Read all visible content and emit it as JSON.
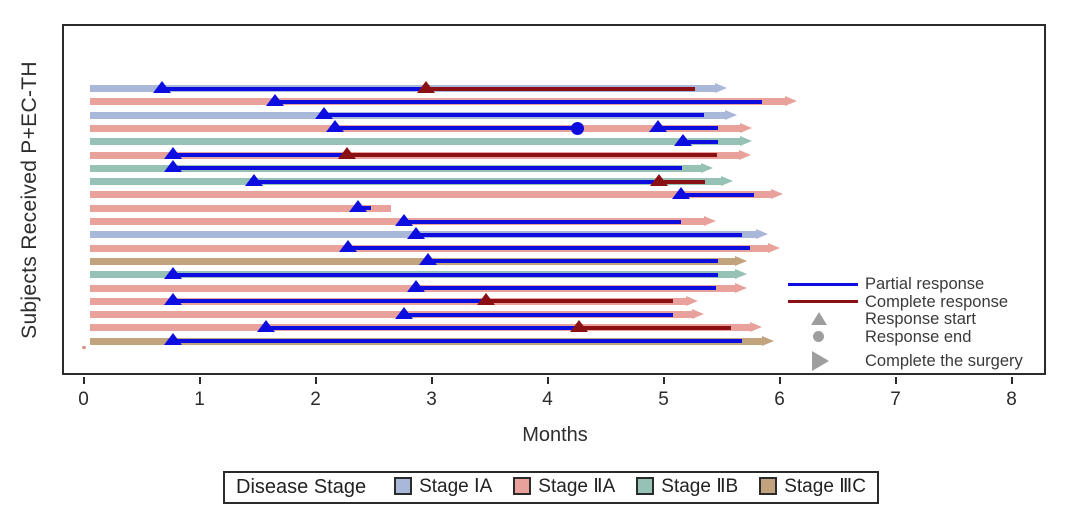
{
  "figure": {
    "background": "#ffffff",
    "frame_color": "#2b2b2b"
  },
  "chart_data": {
    "type": "swimmer",
    "title": "",
    "xlabel": "Months",
    "ylabel": "Subjects Received P+EC-TH",
    "xlim": [
      0,
      8.3
    ],
    "xticks": [
      "0",
      "1",
      "2",
      "3",
      "4",
      "5",
      "6",
      "7",
      "8"
    ],
    "grid": false,
    "stage_legend_title": "Disease Stage",
    "stages": [
      {
        "id": "IA",
        "label": "Stage ⅠA",
        "color": "#a9b7d9"
      },
      {
        "id": "IIA",
        "label": "Stage ⅡA",
        "color": "#e9a29b"
      },
      {
        "id": "IIB",
        "label": "Stage ⅡB",
        "color": "#96c1b5"
      },
      {
        "id": "IIIC",
        "label": "Stage ⅢC",
        "color": "#c1a37d"
      }
    ],
    "response_types": {
      "partial": {
        "label": "Partial response",
        "color": "#0d0de0"
      },
      "complete": {
        "label": "Complete response",
        "color": "#8b1014"
      }
    },
    "marker_color": "#9e9e9e",
    "marker_legend": [
      {
        "icon": "line-partial",
        "label": "Partial response"
      },
      {
        "icon": "line-complete",
        "label": "Complete response"
      },
      {
        "icon": "triangle-up",
        "label": "Response start"
      },
      {
        "icon": "circle",
        "label": "Response end"
      },
      {
        "icon": "triangle-right",
        "label": "Complete the surgery"
      }
    ],
    "bar_start_month": 0.06,
    "subjects": [
      {
        "stage": "IA",
        "bar_end": 5.55,
        "surgery": true,
        "partial": [
          0.68,
          2.95
        ],
        "complete": [
          2.95,
          5.27
        ]
      },
      {
        "stage": "IIA",
        "bar_end": 6.15,
        "surgery": true,
        "partial": [
          1.65,
          5.85
        ]
      },
      {
        "stage": "IA",
        "bar_end": 5.63,
        "surgery": true,
        "partial": [
          2.07,
          5.35
        ]
      },
      {
        "stage": "IIA",
        "bar_end": 5.76,
        "surgery": true,
        "partial": [
          2.17,
          4.26
        ],
        "response_end": 4.26,
        "partial2": [
          4.95,
          5.47
        ]
      },
      {
        "stage": "IIB",
        "bar_end": 5.76,
        "surgery": true,
        "partial": [
          5.17,
          5.47
        ]
      },
      {
        "stage": "IIA",
        "bar_end": 5.75,
        "surgery": true,
        "partial": [
          0.77,
          2.27
        ],
        "complete": [
          2.27,
          5.46
        ]
      },
      {
        "stage": "IIB",
        "bar_end": 5.43,
        "surgery": true,
        "partial": [
          0.77,
          5.16
        ]
      },
      {
        "stage": "IIB",
        "bar_end": 5.6,
        "surgery": true,
        "partial": [
          1.47,
          4.96
        ],
        "complete": [
          4.96,
          5.36
        ]
      },
      {
        "stage": "IIA",
        "bar_end": 6.03,
        "surgery": true,
        "partial": [
          5.15,
          5.78
        ]
      },
      {
        "stage": "IIA",
        "bar_end": 2.65,
        "surgery": false,
        "partial": [
          2.37,
          2.48
        ]
      },
      {
        "stage": "IIA",
        "bar_end": 5.45,
        "surgery": true,
        "partial": [
          2.76,
          5.15
        ]
      },
      {
        "stage": "IA",
        "bar_end": 5.9,
        "surgery": true,
        "partial": [
          2.87,
          5.68
        ]
      },
      {
        "stage": "IIA",
        "bar_end": 6.0,
        "surgery": true,
        "partial": [
          2.28,
          5.75
        ]
      },
      {
        "stage": "IIIC",
        "bar_end": 5.72,
        "surgery": true,
        "partial": [
          2.97,
          5.47
        ]
      },
      {
        "stage": "IIB",
        "bar_end": 5.72,
        "surgery": true,
        "partial": [
          0.77,
          5.47
        ]
      },
      {
        "stage": "IIA",
        "bar_end": 5.72,
        "surgery": true,
        "partial": [
          2.87,
          5.45
        ]
      },
      {
        "stage": "IIA",
        "bar_end": 5.3,
        "surgery": true,
        "partial": [
          0.77,
          3.47
        ],
        "complete": [
          3.47,
          5.08
        ]
      },
      {
        "stage": "IIA",
        "bar_end": 5.35,
        "surgery": true,
        "partial": [
          2.76,
          5.08
        ]
      },
      {
        "stage": "IIA",
        "bar_end": 5.85,
        "surgery": true,
        "partial": [
          1.57,
          4.27
        ],
        "complete": [
          4.27,
          5.58
        ]
      },
      {
        "stage": "IIIC",
        "bar_end": 5.95,
        "surgery": true,
        "partial": [
          0.77,
          5.68
        ]
      }
    ],
    "stray_mark": {
      "x_month": 0.0,
      "below_last_row": true,
      "color": "#d98c80"
    }
  }
}
